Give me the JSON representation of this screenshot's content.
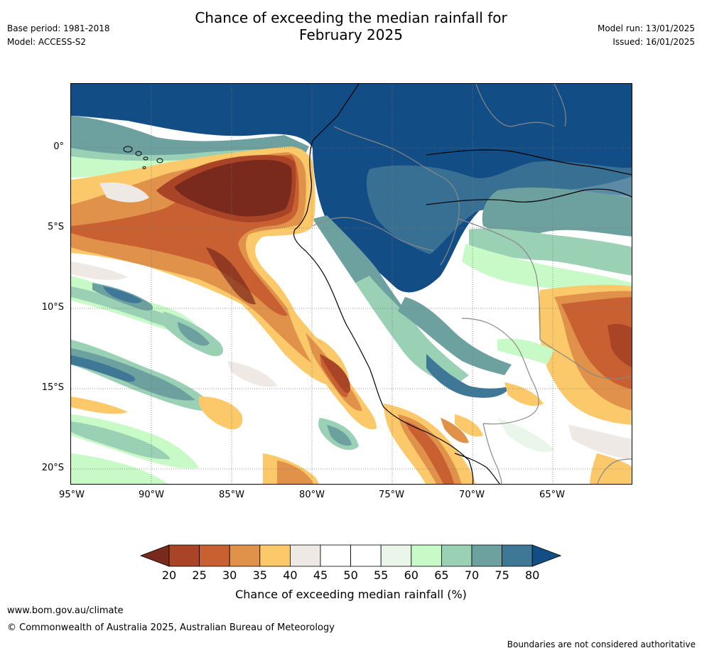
{
  "header": {
    "title_line1": "Chance of exceeding the median rainfall for",
    "title_line2": "February 2025",
    "base_period": "Base period: 1981-2018",
    "model": "Model: ACCESS-S2",
    "model_run": "Model run: 13/01/2025",
    "issued": "Issued: 16/01/2025"
  },
  "map": {
    "region": "Western South America and Eastern Pacific",
    "lat_ticks": [
      "0°",
      "5°S",
      "10°S",
      "15°S",
      "20°S"
    ],
    "lon_ticks": [
      "95°W",
      "90°W",
      "85°W",
      "80°W",
      "75°W",
      "70°W",
      "65°W"
    ]
  },
  "colorbar": {
    "label": "Chance of exceeding median rainfall (%)",
    "ticks": [
      "20",
      "25",
      "30",
      "35",
      "40",
      "45",
      "50",
      "55",
      "60",
      "65",
      "70",
      "75",
      "80"
    ],
    "colors": [
      "#7a2a1c",
      "#a94426",
      "#c96031",
      "#e0924a",
      "#fcc96a",
      "#eee9e5",
      "#ffffff",
      "#ffffff",
      "#eaf6ea",
      "#c7fac6",
      "#9ad0b4",
      "#6da1a0",
      "#3f7797",
      "#134d86"
    ]
  },
  "footer": {
    "url": "www.bom.gov.au/climate",
    "copyright": "© Commonwealth of Australia 2025, Australian Bureau of Meteorology",
    "disclaimer": "Boundaries are not considered authoritative"
  }
}
